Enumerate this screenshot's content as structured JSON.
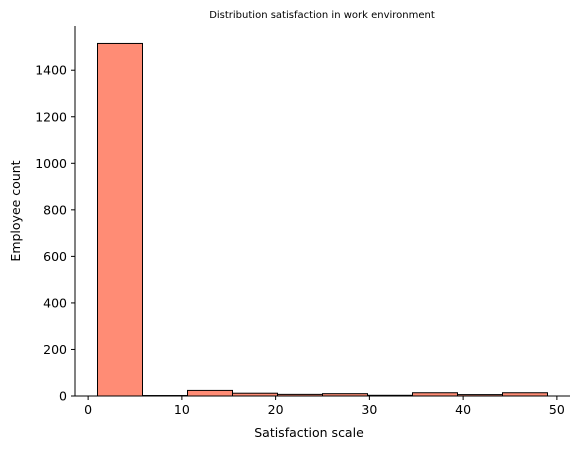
{
  "chart_data": {
    "type": "bar",
    "title": "Distribution satisfaction in work environment",
    "xlabel": "Satisfaction scale",
    "ylabel": "Employee count",
    "xlim": [
      -1.4,
      51.4
    ],
    "ylim": [
      0,
      1590
    ],
    "x_ticks": [
      0,
      10,
      20,
      30,
      40,
      50
    ],
    "y_ticks": [
      0,
      200,
      400,
      600,
      800,
      1000,
      1200,
      1400
    ],
    "grid": false,
    "bar_color": "#FF8C75",
    "edge_color": "#000000",
    "bins": [
      {
        "x0": 1.0,
        "x1": 5.8,
        "value": 1515
      },
      {
        "x0": 5.8,
        "x1": 10.6,
        "value": 2
      },
      {
        "x0": 10.6,
        "x1": 15.4,
        "value": 24
      },
      {
        "x0": 15.4,
        "x1": 20.2,
        "value": 12
      },
      {
        "x0": 20.2,
        "x1": 25.0,
        "value": 7
      },
      {
        "x0": 25.0,
        "x1": 29.8,
        "value": 10
      },
      {
        "x0": 29.8,
        "x1": 34.6,
        "value": 3
      },
      {
        "x0": 34.6,
        "x1": 39.4,
        "value": 14
      },
      {
        "x0": 39.4,
        "x1": 44.2,
        "value": 6
      },
      {
        "x0": 44.2,
        "x1": 49.0,
        "value": 14
      }
    ]
  }
}
